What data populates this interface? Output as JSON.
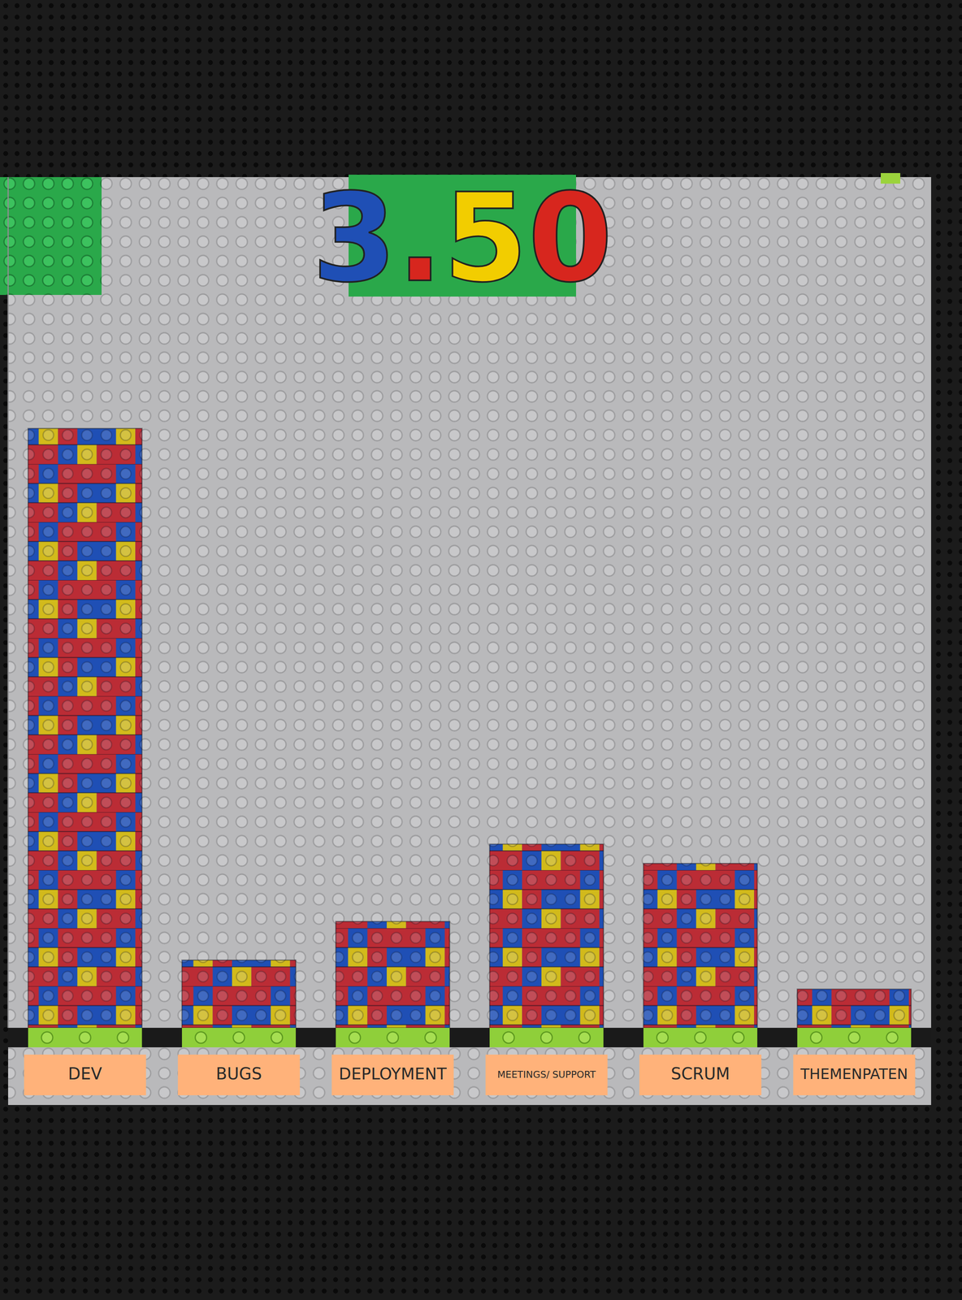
{
  "chart_data": {
    "type": "bar",
    "title": "3.50",
    "categories": [
      "DEV",
      "BUGS",
      "DEPLOYMENT",
      "MEETINGS/ SUPPORT",
      "SCRUM",
      "THEMENPATEN"
    ],
    "values": [
      31,
      3.5,
      5.5,
      9.5,
      8.5,
      2
    ],
    "color": "#1f4fb5",
    "ylim": [
      0,
      44
    ],
    "tick_labels": "x"
  }
}
